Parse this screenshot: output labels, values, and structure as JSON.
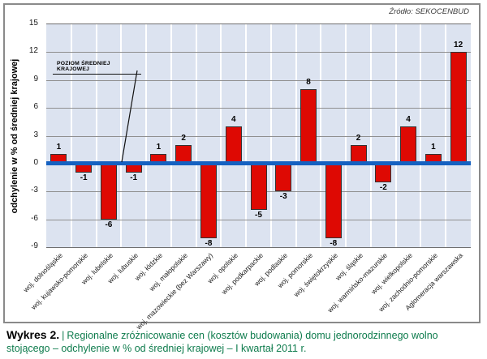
{
  "frame": {
    "source_label": "Źródło: SEKOCENBUD"
  },
  "annotation": {
    "label": "POZIOM ŚREDNIEJ KRAJOWEJ"
  },
  "caption": {
    "title": "Wykres 2.",
    "separator": "|",
    "body": "Regionalne zróżnicowanie cen (kosztów budowania) domu jednorodzinnego wolno stojącego – odchylenie w % od średniej krajowej – I kwartał 2011 r."
  },
  "colors": {
    "bar_fill": "#de0903",
    "bar_border": "#333333",
    "zero_line": "#1561c1",
    "plot_background": "#dce3f0",
    "h_gridline": "#8f8f8f",
    "v_gridline": "#ffffff",
    "frame_border": "#8a8a8a",
    "caption_accent": "#0d7b4c"
  },
  "chart_data": {
    "type": "bar",
    "title": "",
    "xlabel": "",
    "ylabel": "odchylenie w % od średniej krajowej",
    "ylim": [
      -9,
      15
    ],
    "ytick_step": 3,
    "yticks": [
      15,
      12,
      9,
      6,
      3,
      0,
      -3,
      -6,
      -9
    ],
    "grid": "horizontal gray lines, vertical white column separators",
    "legend_position": "none",
    "zero_line_annotation": "POZIOM ŚREDNIEJ KRAJOWEJ",
    "source": "Źródło: SEKOCENBUD",
    "categories": [
      "woj. dolnośląskie",
      "woj. kujawsko-pomorskie",
      "woj. lubelskie",
      "woj. lubuskie",
      "woj. łódzkie",
      "woj. małopolskie",
      "woj. mazowieckie (bez Warszawy)",
      "woj. opolskie",
      "woj. podkarpackie",
      "woj. podlaskie",
      "woj. pomorskie",
      "woj. świętokrzyskie",
      "woj. śląskie",
      "woj. warmińsko-mazurskie",
      "woj. wielkopolskie",
      "woj. zachodnio-pomorskie",
      "Aglomeracja warszawska"
    ],
    "values": [
      1,
      -1,
      -6,
      -1,
      1,
      2,
      -8,
      4,
      -5,
      -3,
      8,
      -8,
      2,
      -2,
      4,
      1,
      12
    ]
  }
}
